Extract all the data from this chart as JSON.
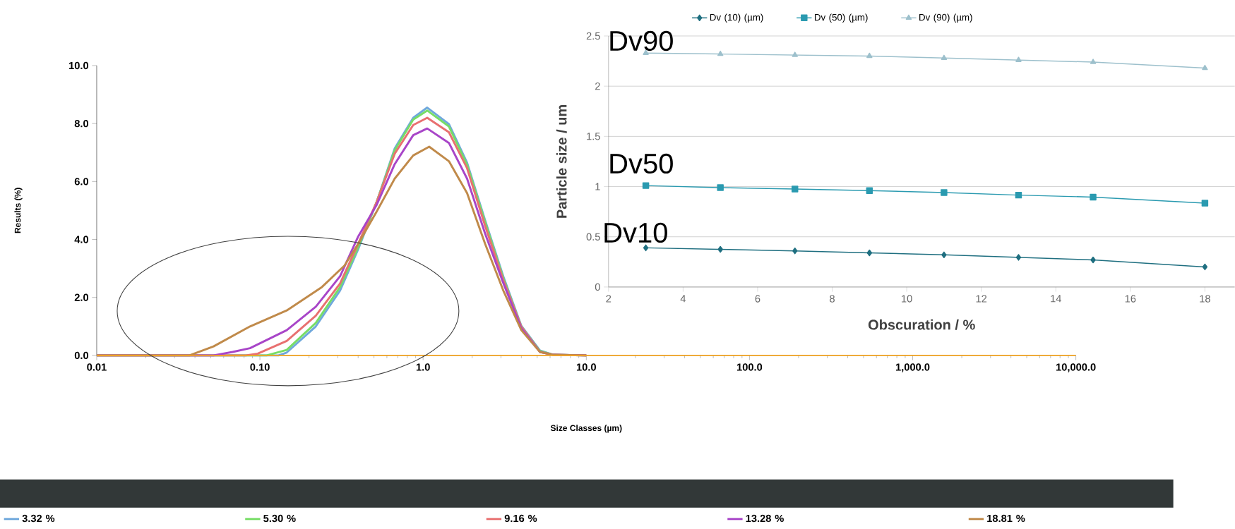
{
  "chart_data": [
    {
      "type": "line",
      "xlabel": "Size Classes (µm)",
      "ylabel": "Results (%)",
      "log": "x",
      "xlim": [
        0.01,
        10000
      ],
      "ylim": [
        0,
        10
      ],
      "xticks": [
        0.01,
        {
          "value": 0.1,
          "label": "0.10"
        },
        {
          "value": 1,
          "label": "1.0"
        },
        {
          "value": 10,
          "label": "10.0"
        },
        {
          "value": 100,
          "label": "100.0"
        },
        {
          "value": 1000,
          "label": "1,000.0"
        },
        {
          "value": 10000,
          "label": "10,000.0"
        }
      ],
      "yticks": [
        {
          "value": 0,
          "label": "0.0"
        },
        {
          "value": 2,
          "label": "2.0"
        },
        {
          "value": 4,
          "label": "4.0"
        },
        {
          "value": 6,
          "label": "6.0"
        },
        {
          "value": 8,
          "label": "8.0"
        },
        {
          "value": 10,
          "label": "10.0"
        }
      ],
      "legend": "bottom",
      "ref_lines": [
        {
          "axis": "y",
          "value": 0,
          "color": "#f5a623"
        }
      ],
      "series": [
        {
          "name": "3.32 %",
          "color": "#6fa8dc",
          "x": [
            0.01,
            0.13,
            0.146,
            0.22,
            0.31,
            0.4,
            0.52,
            0.67,
            0.87,
            1.06,
            1.44,
            1.86,
            2.4,
            3.1,
            4.0,
            5.2,
            6.3,
            10
          ],
          "values": [
            0,
            0,
            0.1,
            1.0,
            2.24,
            3.66,
            5.3,
            7.14,
            8.2,
            8.55,
            7.98,
            6.65,
            4.66,
            2.73,
            1.02,
            0.17,
            0.02,
            0
          ]
        },
        {
          "name": "5.30 %",
          "color": "#77dd66",
          "x": [
            0.01,
            0.11,
            0.146,
            0.22,
            0.31,
            0.4,
            0.52,
            0.67,
            0.87,
            1.06,
            1.44,
            1.86,
            2.4,
            3.1,
            4.0,
            5.2,
            6.3,
            10
          ],
          "values": [
            0,
            0,
            0.19,
            1.12,
            2.36,
            3.73,
            5.3,
            7.08,
            8.14,
            8.45,
            7.9,
            6.58,
            4.6,
            2.67,
            0.99,
            0.15,
            0.02,
            0
          ]
        },
        {
          "name": "9.16 %",
          "color": "#e87070",
          "x": [
            0.01,
            0.082,
            0.097,
            0.146,
            0.22,
            0.31,
            0.4,
            0.52,
            0.67,
            0.87,
            1.06,
            1.44,
            1.86,
            2.4,
            3.1,
            4.0,
            5.2,
            6.3,
            10
          ],
          "values": [
            0,
            0,
            0.06,
            0.5,
            1.37,
            2.48,
            3.85,
            5.3,
            6.96,
            7.95,
            8.2,
            7.7,
            6.46,
            4.47,
            2.6,
            0.99,
            0.12,
            0.02,
            0
          ]
        },
        {
          "name": "13.28 %",
          "color": "#a845c8",
          "x": [
            0.01,
            0.052,
            0.068,
            0.087,
            0.146,
            0.22,
            0.31,
            0.4,
            0.52,
            0.67,
            0.87,
            1.06,
            1.44,
            1.86,
            2.4,
            3.1,
            4.0,
            5.2,
            6.3,
            10
          ],
          "values": [
            0,
            0,
            0.12,
            0.25,
            0.87,
            1.68,
            2.73,
            4.1,
            5.2,
            6.6,
            7.6,
            7.83,
            7.33,
            6.1,
            4.2,
            2.5,
            0.93,
            0.12,
            0.02,
            0
          ]
        },
        {
          "name": "18.81 %",
          "color": "#c08a4a",
          "x": [
            0.01,
            0.037,
            0.052,
            0.087,
            0.146,
            0.24,
            0.33,
            0.4,
            0.52,
            0.67,
            0.87,
            1.09,
            1.44,
            1.86,
            2.4,
            3.1,
            4.0,
            5.2,
            6.3,
            10
          ],
          "values": [
            0,
            0,
            0.31,
            1.0,
            1.55,
            2.36,
            3.1,
            3.85,
            4.97,
            6.1,
            6.9,
            7.2,
            6.7,
            5.6,
            3.85,
            2.24,
            0.87,
            0.12,
            0.02,
            0
          ]
        }
      ]
    },
    {
      "type": "line",
      "xlabel": "Obscuration / %",
      "ylabel": "Particle size / um",
      "xlim": [
        2,
        18.8
      ],
      "ylim": [
        0,
        2.5
      ],
      "xticks": [
        2,
        4,
        6,
        8,
        10,
        12,
        14,
        16,
        18
      ],
      "yticks": [
        0,
        0.5,
        1,
        1.5,
        2,
        2.5
      ],
      "grid": "y",
      "legend": "top",
      "x": [
        3,
        5,
        7,
        9,
        11,
        13,
        15,
        18
      ],
      "annotations": [
        "Dv90",
        "Dv50",
        "Dv10"
      ],
      "series": [
        {
          "name": "Dv (10) (µm)",
          "color": "#1f6f80",
          "marker": "diamond",
          "values": [
            0.39,
            0.375,
            0.36,
            0.34,
            0.32,
            0.295,
            0.27,
            0.2
          ]
        },
        {
          "name": "Dv (50) (µm)",
          "color": "#2a9ab0",
          "marker": "square",
          "values": [
            1.01,
            0.99,
            0.975,
            0.96,
            0.94,
            0.915,
            0.895,
            0.835
          ]
        },
        {
          "name": "Dv (90) (µm)",
          "color": "#9dc0cc",
          "marker": "triangle",
          "values": [
            2.33,
            2.32,
            2.31,
            2.3,
            2.28,
            2.26,
            2.24,
            2.18
          ]
        }
      ]
    }
  ]
}
